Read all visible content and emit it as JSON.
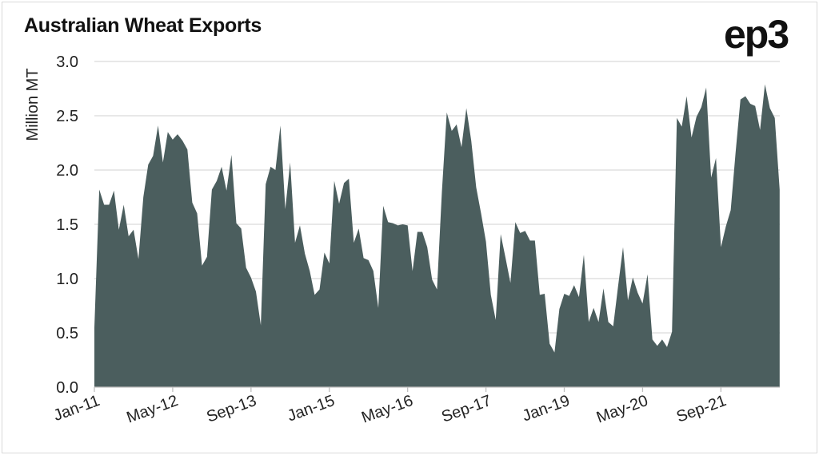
{
  "title": "Australian Wheat Exports",
  "logo_text": "ep3",
  "chart_data": {
    "type": "area",
    "title": "Australian Wheat Exports",
    "xlabel": "",
    "ylabel": "Million MT",
    "ylim": [
      0,
      3.0
    ],
    "yticks": [
      "0.0",
      "0.5",
      "1.0",
      "1.5",
      "2.0",
      "2.5",
      "3.0"
    ],
    "xticks": [
      "Jan-11",
      "May-12",
      "Sep-13",
      "Jan-15",
      "May-16",
      "Sep-17",
      "Jan-19",
      "May-20",
      "Sep-21"
    ],
    "grid": true,
    "fill_color": "#4b5e5e",
    "x": [
      "Jan-11",
      "Feb-11",
      "Mar-11",
      "Apr-11",
      "May-11",
      "Jun-11",
      "Jul-11",
      "Aug-11",
      "Sep-11",
      "Oct-11",
      "Nov-11",
      "Dec-11",
      "Jan-12",
      "Feb-12",
      "Mar-12",
      "Apr-12",
      "May-12",
      "Jun-12",
      "Jul-12",
      "Aug-12",
      "Sep-12",
      "Oct-12",
      "Nov-12",
      "Dec-12",
      "Jan-13",
      "Feb-13",
      "Mar-13",
      "Apr-13",
      "May-13",
      "Jun-13",
      "Jul-13",
      "Aug-13",
      "Sep-13",
      "Oct-13",
      "Nov-13",
      "Dec-13",
      "Jan-14",
      "Feb-14",
      "Mar-14",
      "Apr-14",
      "May-14",
      "Jun-14",
      "Jul-14",
      "Aug-14",
      "Sep-14",
      "Oct-14",
      "Nov-14",
      "Dec-14",
      "Jan-15",
      "Feb-15",
      "Mar-15",
      "Apr-15",
      "May-15",
      "Jun-15",
      "Jul-15",
      "Aug-15",
      "Sep-15",
      "Oct-15",
      "Nov-15",
      "Dec-15",
      "Jan-16",
      "Feb-16",
      "Mar-16",
      "Apr-16",
      "May-16",
      "Jun-16",
      "Jul-16",
      "Aug-16",
      "Sep-16",
      "Oct-16",
      "Nov-16",
      "Dec-16",
      "Jan-17",
      "Feb-17",
      "Mar-17",
      "Apr-17",
      "May-17",
      "Jun-17",
      "Jul-17",
      "Aug-17",
      "Sep-17",
      "Oct-17",
      "Nov-17",
      "Dec-17",
      "Jan-18",
      "Feb-18",
      "Mar-18",
      "Apr-18",
      "May-18",
      "Jun-18",
      "Jul-18",
      "Aug-18",
      "Sep-18",
      "Oct-18",
      "Nov-18",
      "Dec-18",
      "Jan-19",
      "Feb-19",
      "Mar-19",
      "Apr-19",
      "May-19",
      "Jun-19",
      "Jul-19",
      "Aug-19",
      "Sep-19",
      "Oct-19",
      "Nov-19",
      "Dec-19",
      "Jan-20",
      "Feb-20",
      "Mar-20",
      "Apr-20",
      "May-20",
      "Jun-20",
      "Jul-20",
      "Aug-20",
      "Sep-20",
      "Oct-20",
      "Nov-20",
      "Dec-20",
      "Jan-21",
      "Feb-21",
      "Mar-21",
      "Apr-21",
      "May-21",
      "Jun-21",
      "Jul-21",
      "Aug-21",
      "Sep-21",
      "Oct-21",
      "Nov-21",
      "Dec-21",
      "Jan-22",
      "Feb-22",
      "Mar-22",
      "Apr-22",
      "May-22",
      "Jun-22",
      "Jul-22",
      "Aug-22",
      "Sep-22"
    ],
    "values": [
      0.55,
      1.82,
      1.68,
      1.68,
      1.81,
      1.45,
      1.68,
      1.39,
      1.45,
      1.18,
      1.75,
      2.05,
      2.13,
      2.41,
      2.07,
      2.35,
      2.28,
      2.33,
      2.27,
      2.19,
      1.7,
      1.6,
      1.12,
      1.2,
      1.82,
      1.9,
      2.03,
      1.81,
      2.14,
      1.51,
      1.46,
      1.1,
      1.01,
      0.88,
      0.57,
      1.87,
      2.03,
      2.0,
      2.41,
      1.64,
      2.07,
      1.33,
      1.49,
      1.23,
      1.07,
      0.85,
      0.9,
      1.24,
      1.14,
      1.9,
      1.69,
      1.88,
      1.92,
      1.33,
      1.46,
      1.19,
      1.17,
      1.07,
      0.73,
      1.67,
      1.52,
      1.51,
      1.49,
      1.5,
      1.49,
      1.07,
      1.43,
      1.43,
      1.29,
      0.99,
      0.9,
      1.8,
      2.53,
      2.36,
      2.42,
      2.21,
      2.57,
      2.27,
      1.84,
      1.6,
      1.34,
      0.85,
      0.62,
      1.41,
      1.19,
      0.96,
      1.52,
      1.42,
      1.44,
      1.35,
      1.35,
      0.85,
      0.86,
      0.4,
      0.32,
      0.72,
      0.86,
      0.84,
      0.94,
      0.83,
      1.22,
      0.6,
      0.73,
      0.6,
      0.91,
      0.6,
      0.56,
      0.93,
      1.29,
      0.8,
      1.01,
      0.87,
      0.77,
      1.04,
      0.44,
      0.38,
      0.44,
      0.37,
      0.51,
      2.48,
      2.4,
      2.68,
      2.3,
      2.49,
      2.58,
      2.76,
      1.93,
      2.11,
      1.29,
      1.48,
      1.63,
      2.16,
      2.65,
      2.68,
      2.61,
      2.59,
      2.37,
      2.79,
      2.57,
      2.48,
      1.82
    ]
  }
}
